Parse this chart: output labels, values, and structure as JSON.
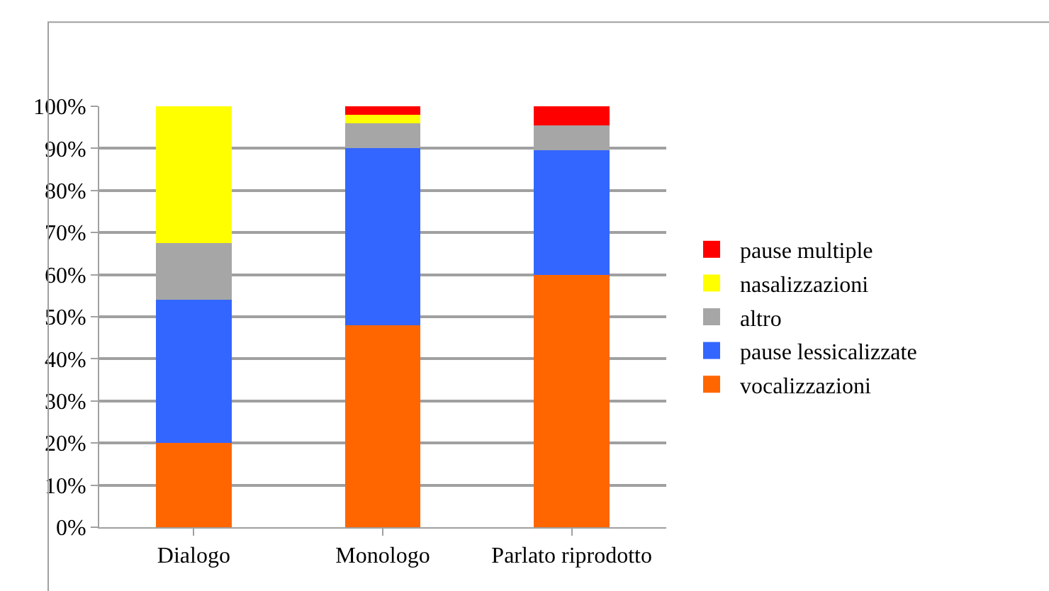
{
  "chart_data": {
    "type": "bar",
    "stacked": true,
    "categories": [
      "Dialogo",
      "Monologo",
      "Parlato riprodotto"
    ],
    "series": [
      {
        "name": "vocalizzazioni",
        "color": "#ff6600",
        "values": [
          20,
          48,
          60
        ]
      },
      {
        "name": "pause lessicalizzate",
        "color": "#3366ff",
        "values": [
          34,
          42,
          29.5
        ]
      },
      {
        "name": "altro",
        "color": "#a6a6a6",
        "values": [
          13.5,
          6,
          6
        ]
      },
      {
        "name": "nasalizzazioni",
        "color": "#ffff00",
        "values": [
          32.5,
          2,
          0
        ]
      },
      {
        "name": "pause multiple",
        "color": "#ff0000",
        "values": [
          0,
          2,
          4.5
        ]
      }
    ],
    "ylim": [
      0,
      100
    ],
    "yticks": [
      {
        "value": 0,
        "label": "0%"
      },
      {
        "value": 10,
        "label": "10%"
      },
      {
        "value": 20,
        "label": "20%"
      },
      {
        "value": 30,
        "label": "30%"
      },
      {
        "value": 40,
        "label": "40%"
      },
      {
        "value": 50,
        "label": "50%"
      },
      {
        "value": 60,
        "label": "60%"
      },
      {
        "value": 70,
        "label": "70%"
      },
      {
        "value": 80,
        "label": "80%"
      },
      {
        "value": 90,
        "label": "90%"
      },
      {
        "value": 100,
        "label": "100%"
      }
    ],
    "grid": "y",
    "legend": "right"
  }
}
